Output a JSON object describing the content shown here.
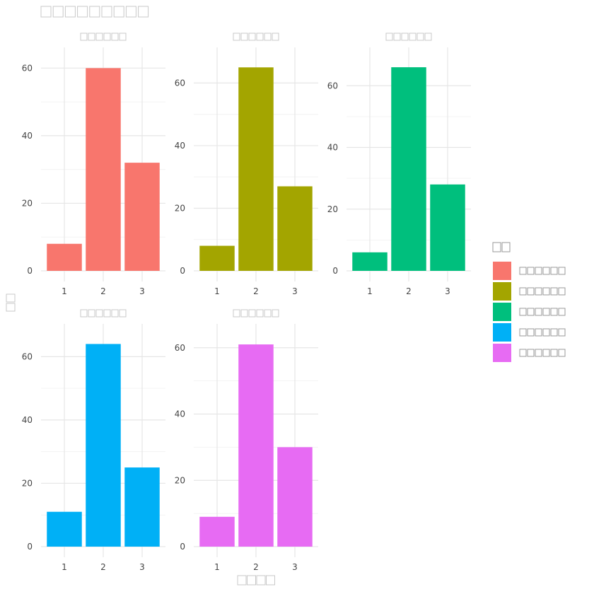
{
  "chart_data": {
    "type": "bar",
    "title": "□□□□□□□□□",
    "xlabel": "□□□□",
    "ylabel": "□□",
    "legend": {
      "title": "□□",
      "placement": "right",
      "entries": [
        {
          "label": "□□□□□□",
          "color": "#F8766D"
        },
        {
          "label": "□□□□□□",
          "color": "#A3A500"
        },
        {
          "label": "□□□□□□",
          "color": "#00BF7D"
        },
        {
          "label": "□□□□□□",
          "color": "#00B0F6"
        },
        {
          "label": "□□□□□□",
          "color": "#E76BF3"
        }
      ]
    },
    "grid": true,
    "categories": [
      "1",
      "2",
      "3"
    ],
    "facets": [
      {
        "strip": "□□□□□□",
        "color": "#F8766D",
        "values": [
          8,
          60,
          32
        ],
        "ylim": [
          0,
          63
        ],
        "yticks": [
          0,
          20,
          40,
          60
        ]
      },
      {
        "strip": "□□□□□□",
        "color": "#A3A500",
        "values": [
          8,
          65,
          27
        ],
        "ylim": [
          0,
          68
        ],
        "yticks": [
          0,
          20,
          40,
          60
        ]
      },
      {
        "strip": "□□□□□□",
        "color": "#00BF7D",
        "values": [
          6,
          66,
          28
        ],
        "ylim": [
          0,
          69
        ],
        "yticks": [
          0,
          20,
          40,
          60
        ]
      },
      {
        "strip": "□□□□□□",
        "color": "#00B0F6",
        "values": [
          11,
          64,
          25
        ],
        "ylim": [
          0,
          67
        ],
        "yticks": [
          0,
          20,
          40,
          60
        ]
      },
      {
        "strip": "□□□□□□",
        "color": "#E76BF3",
        "values": [
          9,
          61,
          30
        ],
        "ylim": [
          0,
          64
        ],
        "yticks": [
          0,
          20,
          40,
          60
        ]
      }
    ]
  }
}
